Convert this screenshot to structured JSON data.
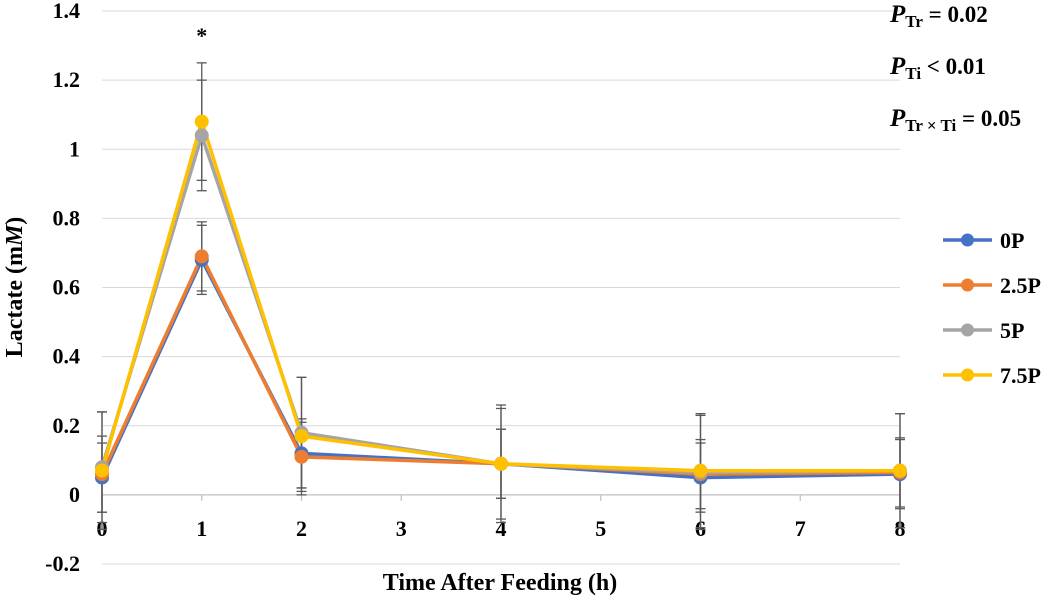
{
  "chart_data": {
    "type": "line",
    "title": "",
    "xlabel": "Time After Feeding (h)",
    "ylabel_prefix": "Lactate (m",
    "ylabel_unit": "M",
    "ylabel_suffix": ")",
    "xlim": [
      0,
      8
    ],
    "ylim": [
      -0.2,
      1.4
    ],
    "x_ticks": [
      0,
      1,
      2,
      3,
      4,
      5,
      6,
      7,
      8
    ],
    "x_tick_labels": [
      "0",
      "1",
      "2",
      "3",
      "4",
      "5",
      "6",
      "7",
      "8"
    ],
    "y_ticks": [
      -0.2,
      0,
      0.2,
      0.4,
      0.6,
      0.8,
      1.0,
      1.2,
      1.4
    ],
    "y_tick_labels": [
      "-0.2",
      "0",
      "0.2",
      "0.4",
      "0.6",
      "0.8",
      "1",
      "1.2",
      "1.4"
    ],
    "grid": true,
    "legend_position": "right",
    "x": [
      0,
      1,
      2,
      4,
      6,
      8
    ],
    "series": [
      {
        "name": "0P",
        "color": "#4472C4",
        "values": [
          0.05,
          0.68,
          0.12,
          0.09,
          0.05,
          0.06
        ],
        "errors": [
          0.1,
          0.1,
          0.1,
          0.1,
          0.1,
          0.1
        ]
      },
      {
        "name": "2.5P",
        "color": "#ED7D31",
        "values": [
          0.06,
          0.69,
          0.11,
          0.09,
          0.06,
          0.065
        ],
        "errors": [
          0.11,
          0.1,
          0.1,
          0.1,
          0.1,
          0.1
        ]
      },
      {
        "name": "5P",
        "color": "#A5A5A5",
        "values": [
          0.08,
          1.04,
          0.18,
          0.09,
          0.065,
          0.07
        ],
        "errors": [
          0.16,
          0.16,
          0.16,
          0.16,
          0.165,
          0.165
        ]
      },
      {
        "name": "7.5P",
        "color": "#FFC000",
        "values": [
          0.07,
          1.08,
          0.17,
          0.09,
          0.07,
          0.07
        ],
        "errors": [
          0.17,
          0.17,
          0.17,
          0.17,
          0.165,
          0.165
        ]
      }
    ],
    "annotations": [
      {
        "text": "*",
        "x": 1,
        "y": 1.33
      }
    ],
    "stats": [
      {
        "p": "P",
        "sub": "Tr",
        "rest": " = 0.02"
      },
      {
        "p": "P",
        "sub": "Ti",
        "rest": " < 0.01"
      },
      {
        "p": "P",
        "sub": "Tr × Ti",
        "rest": " = 0.05"
      }
    ]
  }
}
